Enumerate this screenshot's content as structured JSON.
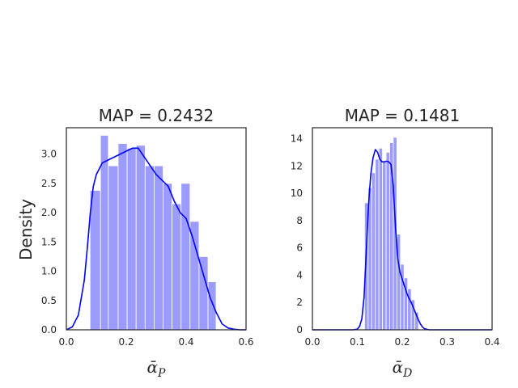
{
  "chart_data": [
    {
      "type": "histogram",
      "title": "MAP = 0.2432",
      "ylabel": "Density",
      "xlabel_base": "ᾱ",
      "xlabel_sub": "P",
      "xlim": [
        0,
        0.6
      ],
      "ylim": [
        0,
        3.45
      ],
      "xticks": [
        0.0,
        0.2,
        0.4,
        0.6
      ],
      "xtick_labels": [
        "0.0",
        "0.2",
        "0.4",
        "0.6"
      ],
      "yticks": [
        0.0,
        0.5,
        1.0,
        1.5,
        2.0,
        2.5,
        3.0
      ],
      "ytick_labels": [
        "0.0",
        "0.5",
        "1.0",
        "1.5",
        "2.0",
        "2.5",
        "3.0"
      ],
      "bar_color": "#9c9cff",
      "kde_color": "#0000ff",
      "grid": false,
      "bins": [
        {
          "x0": 0.079,
          "x1": 0.114,
          "density": 2.38
        },
        {
          "x0": 0.114,
          "x1": 0.14,
          "density": 3.32
        },
        {
          "x0": 0.14,
          "x1": 0.173,
          "density": 2.8
        },
        {
          "x0": 0.173,
          "x1": 0.203,
          "density": 3.18
        },
        {
          "x0": 0.203,
          "x1": 0.233,
          "density": 3.1
        },
        {
          "x0": 0.233,
          "x1": 0.263,
          "density": 3.15
        },
        {
          "x0": 0.263,
          "x1": 0.293,
          "density": 2.8
        },
        {
          "x0": 0.293,
          "x1": 0.323,
          "density": 2.8
        },
        {
          "x0": 0.323,
          "x1": 0.353,
          "density": 2.5
        },
        {
          "x0": 0.353,
          "x1": 0.383,
          "density": 2.15
        },
        {
          "x0": 0.383,
          "x1": 0.413,
          "density": 2.5
        },
        {
          "x0": 0.413,
          "x1": 0.443,
          "density": 1.85
        },
        {
          "x0": 0.443,
          "x1": 0.473,
          "density": 1.25
        },
        {
          "x0": 0.473,
          "x1": 0.5,
          "density": 0.82
        }
      ],
      "kde": {
        "x": [
          0.0,
          0.02,
          0.04,
          0.06,
          0.07,
          0.08,
          0.09,
          0.1,
          0.11,
          0.12,
          0.14,
          0.16,
          0.18,
          0.2,
          0.22,
          0.24,
          0.26,
          0.28,
          0.3,
          0.32,
          0.34,
          0.36,
          0.38,
          0.4,
          0.42,
          0.44,
          0.46,
          0.48,
          0.5,
          0.52,
          0.54,
          0.56,
          0.58,
          0.6
        ],
        "y": [
          0.0,
          0.05,
          0.25,
          0.85,
          1.4,
          2.0,
          2.45,
          2.65,
          2.75,
          2.85,
          2.9,
          2.95,
          3.0,
          3.05,
          3.1,
          3.1,
          2.95,
          2.8,
          2.65,
          2.55,
          2.45,
          2.2,
          2.0,
          1.9,
          1.6,
          1.25,
          0.9,
          0.55,
          0.3,
          0.1,
          0.03,
          0.01,
          0.0,
          0.0
        ]
      }
    },
    {
      "type": "histogram",
      "title": "MAP = 0.1481",
      "ylabel": "",
      "xlabel_base": "ᾱ",
      "xlabel_sub": "D",
      "xlim": [
        0,
        0.4
      ],
      "ylim": [
        0,
        14.8
      ],
      "xticks": [
        0.0,
        0.1,
        0.2,
        0.3,
        0.4
      ],
      "xtick_labels": [
        "0.0",
        "0.1",
        "0.2",
        "0.3",
        "0.4"
      ],
      "yticks": [
        0,
        2,
        4,
        6,
        8,
        10,
        12,
        14
      ],
      "ytick_labels": [
        "0",
        "2",
        "4",
        "6",
        "8",
        "10",
        "12",
        "14"
      ],
      "bar_color": "#9c9cff",
      "kde_color": "#0000ff",
      "grid": false,
      "bins": [
        {
          "x0": 0.116,
          "x1": 0.124,
          "density": 9.3
        },
        {
          "x0": 0.124,
          "x1": 0.132,
          "density": 10.4
        },
        {
          "x0": 0.132,
          "x1": 0.14,
          "density": 11.5
        },
        {
          "x0": 0.14,
          "x1": 0.148,
          "density": 12.5
        },
        {
          "x0": 0.148,
          "x1": 0.156,
          "density": 13.3
        },
        {
          "x0": 0.156,
          "x1": 0.164,
          "density": 12.3
        },
        {
          "x0": 0.164,
          "x1": 0.172,
          "density": 13.0
        },
        {
          "x0": 0.172,
          "x1": 0.18,
          "density": 13.7
        },
        {
          "x0": 0.18,
          "x1": 0.188,
          "density": 14.1
        },
        {
          "x0": 0.188,
          "x1": 0.196,
          "density": 7.0
        },
        {
          "x0": 0.196,
          "x1": 0.204,
          "density": 4.8
        },
        {
          "x0": 0.204,
          "x1": 0.212,
          "density": 3.8
        },
        {
          "x0": 0.212,
          "x1": 0.22,
          "density": 3.0
        },
        {
          "x0": 0.22,
          "x1": 0.228,
          "density": 2.2
        },
        {
          "x0": 0.228,
          "x1": 0.236,
          "density": 1.3
        }
      ],
      "kde": {
        "x": [
          0.0,
          0.09,
          0.1,
          0.105,
          0.11,
          0.115,
          0.12,
          0.125,
          0.13,
          0.135,
          0.14,
          0.145,
          0.15,
          0.155,
          0.16,
          0.165,
          0.17,
          0.175,
          0.18,
          0.185,
          0.19,
          0.195,
          0.2,
          0.205,
          0.21,
          0.215,
          0.22,
          0.225,
          0.23,
          0.235,
          0.24,
          0.245,
          0.25,
          0.26,
          0.4
        ],
        "y": [
          0.0,
          0.0,
          0.05,
          0.25,
          0.8,
          2.4,
          5.8,
          9.2,
          11.4,
          12.6,
          13.2,
          13.0,
          12.5,
          12.3,
          12.3,
          12.35,
          12.3,
          12.1,
          10.5,
          7.5,
          5.2,
          4.2,
          3.7,
          3.2,
          2.7,
          2.3,
          2.0,
          1.6,
          1.2,
          0.8,
          0.45,
          0.2,
          0.07,
          0.0,
          0.0
        ]
      }
    }
  ]
}
